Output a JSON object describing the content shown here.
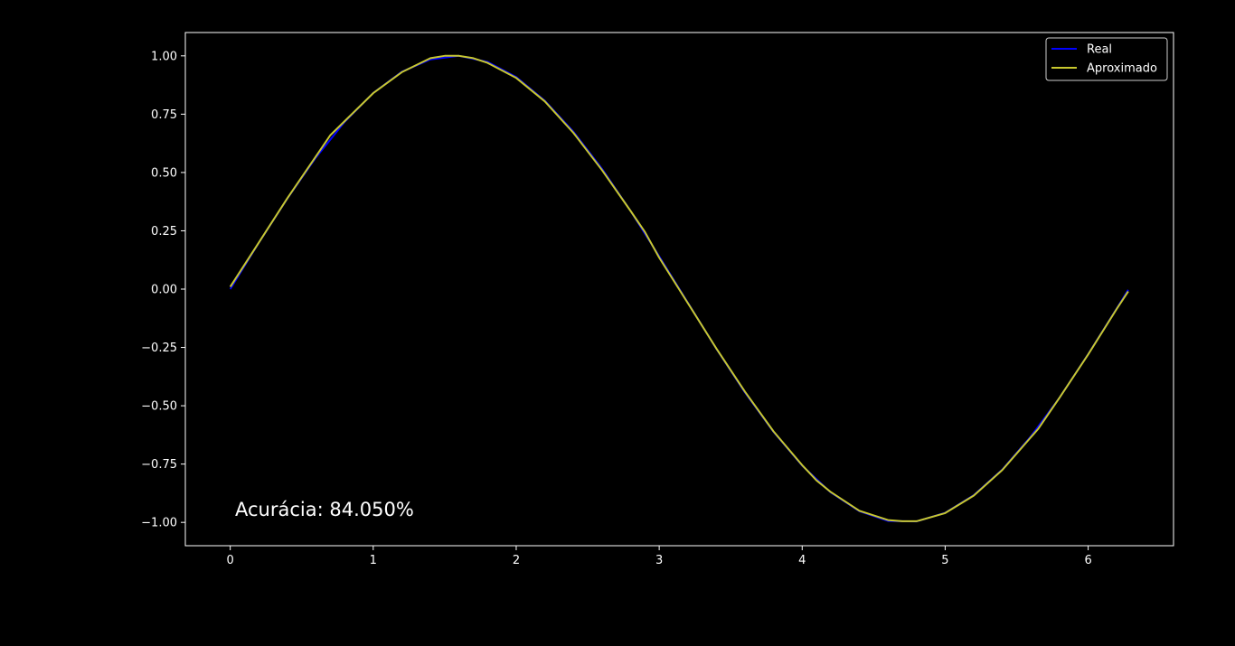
{
  "chart_data": {
    "type": "line",
    "title": "",
    "xlabel": "",
    "ylabel": "",
    "xlim": [
      -0.314,
      6.597
    ],
    "ylim": [
      -1.1,
      1.1
    ],
    "grid": false,
    "legend_position": "top-right",
    "x_ticks": [
      0,
      1,
      2,
      3,
      4,
      5,
      6
    ],
    "x_tick_labels": [
      "0",
      "1",
      "2",
      "3",
      "4",
      "5",
      "6"
    ],
    "y_ticks": [
      1.0,
      0.75,
      0.5,
      0.25,
      0.0,
      -0.25,
      -0.5,
      -0.75,
      -1.0
    ],
    "y_tick_labels": [
      "1.00",
      "0.75",
      "0.50",
      "0.25",
      "0.00",
      "−0.25",
      "−0.50",
      "−0.75",
      "−1.00"
    ],
    "annotation": "Acurácia: 84.050%",
    "series": [
      {
        "name": "Real",
        "color": "#0000ff",
        "x": [
          0.0,
          0.2,
          0.4,
          0.6,
          0.8,
          1.0,
          1.2,
          1.4,
          1.6,
          1.8,
          2.0,
          2.2,
          2.4,
          2.6,
          2.8,
          3.0,
          3.2,
          3.4,
          3.6,
          3.8,
          4.0,
          4.2,
          4.4,
          4.6,
          4.8,
          5.0,
          5.2,
          5.4,
          5.6,
          5.8,
          6.0,
          6.2,
          6.28
        ],
        "y": [
          0.0,
          0.199,
          0.389,
          0.565,
          0.717,
          0.841,
          0.932,
          0.985,
          1.0,
          0.974,
          0.909,
          0.808,
          0.675,
          0.516,
          0.335,
          0.141,
          -0.058,
          -0.256,
          -0.443,
          -0.612,
          -0.757,
          -0.872,
          -0.952,
          -0.994,
          -0.996,
          -0.959,
          -0.883,
          -0.773,
          -0.631,
          -0.465,
          -0.279,
          -0.083,
          -0.003
        ]
      },
      {
        "name": "Aproximado",
        "color": "#c8c82e",
        "x": [
          0.0,
          0.2,
          0.4,
          0.6,
          0.7,
          0.8,
          1.0,
          1.2,
          1.4,
          1.5,
          1.6,
          1.7,
          1.8,
          2.0,
          2.2,
          2.4,
          2.6,
          2.8,
          2.9,
          3.0,
          3.2,
          3.4,
          3.6,
          3.8,
          4.0,
          4.1,
          4.2,
          4.4,
          4.6,
          4.7,
          4.8,
          5.0,
          5.2,
          5.4,
          5.6,
          5.65,
          5.8,
          6.0,
          6.2,
          6.28
        ],
        "y": [
          0.01,
          0.2,
          0.39,
          0.57,
          0.66,
          0.72,
          0.84,
          0.93,
          0.99,
          1.0,
          1.0,
          0.99,
          0.97,
          0.905,
          0.805,
          0.67,
          0.51,
          0.335,
          0.245,
          0.135,
          -0.06,
          -0.255,
          -0.44,
          -0.61,
          -0.755,
          -0.82,
          -0.87,
          -0.95,
          -0.99,
          -0.995,
          -0.995,
          -0.96,
          -0.885,
          -0.775,
          -0.635,
          -0.6,
          -0.465,
          -0.28,
          -0.085,
          -0.01
        ]
      }
    ]
  }
}
